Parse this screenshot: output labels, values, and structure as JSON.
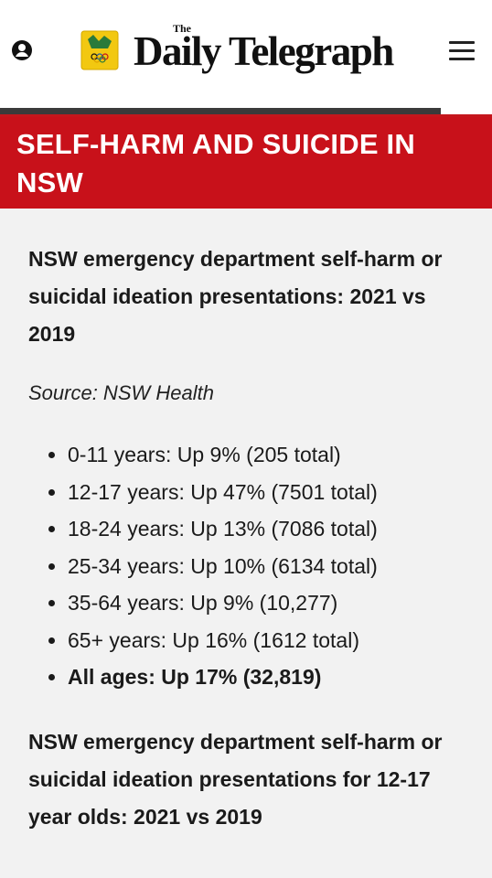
{
  "header": {
    "icons": {
      "account": "user-icon",
      "logo": "crest-logo",
      "menu": "menu-icon"
    },
    "masthead_small": "The",
    "masthead": "Daily Telegraph"
  },
  "colors": {
    "accent": "#c8111a",
    "background": "#f2f2f2",
    "header_bg": "#ffffff"
  },
  "banner": {
    "title": "SELF-HARM AND SUICIDE IN NSW"
  },
  "article": {
    "heading_1": "NSW emergency department self-harm or suicidal ideation presentations: 2021 vs 2019",
    "source": "Source: NSW Health",
    "stats": [
      "0-11 years: Up 9% (205 total)",
      "12-17 years: Up 47% (7501 total)",
      "18-24 years: Up 13% (7086 total)",
      "25-34 years: Up 10% (6134 total)",
      "35-64 years: Up 9% (10,277)",
      "65+ years: Up 16% (1612 total)",
      "All ages: Up 17% (32,819)"
    ],
    "heading_2": "NSW emergency department self-harm or suicidal ideation presentations for 12-17 year olds: 2021 vs 2019"
  }
}
